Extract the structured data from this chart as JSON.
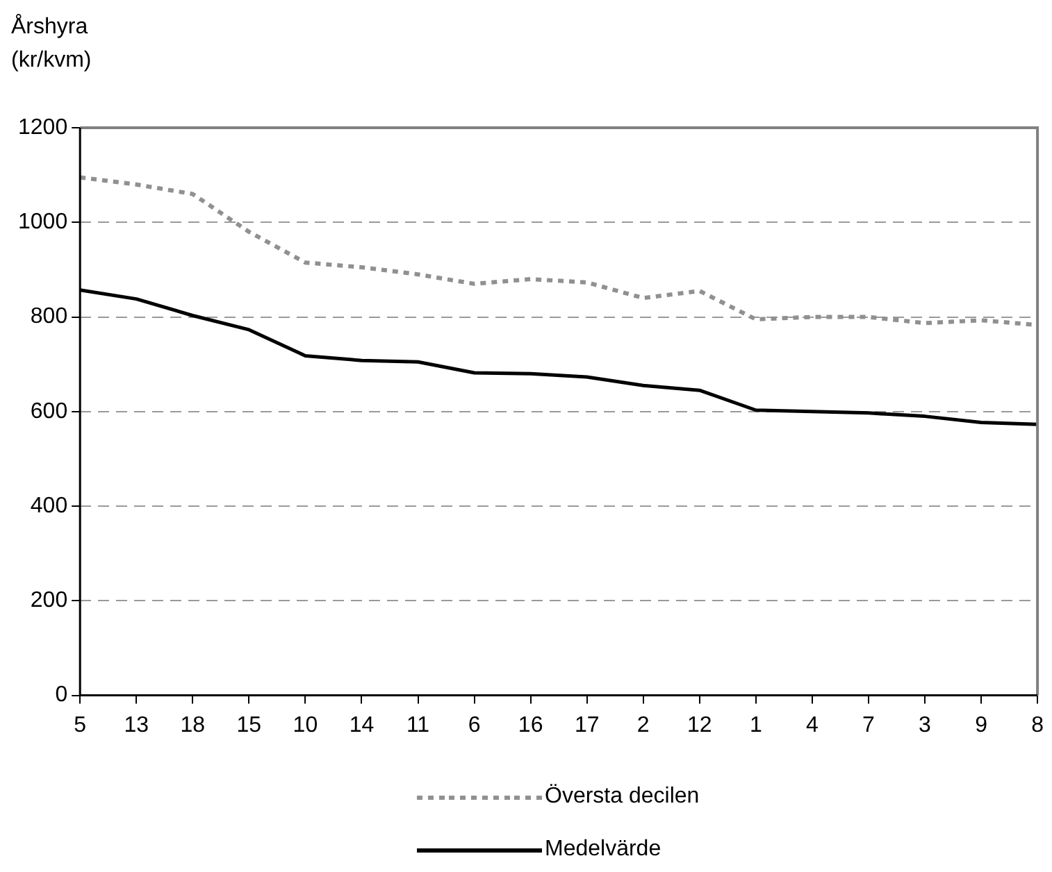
{
  "chart_data": {
    "type": "line",
    "ylabel": "Årshyra\n(kr/kvm)",
    "categories": [
      "5",
      "13",
      "18",
      "15",
      "10",
      "14",
      "11",
      "6",
      "16",
      "17",
      "2",
      "12",
      "1",
      "4",
      "7",
      "3",
      "9",
      "8"
    ],
    "series": [
      {
        "name": "Översta decilen",
        "color": "#909090",
        "line_style": "dotted",
        "values": [
          1095,
          1080,
          1060,
          980,
          915,
          905,
          890,
          870,
          880,
          873,
          840,
          855,
          795,
          800,
          800,
          787,
          793,
          783
        ]
      },
      {
        "name": "Medelvärde",
        "color": "#000000",
        "line_style": "solid",
        "values": [
          857,
          838,
          803,
          773,
          718,
          708,
          705,
          682,
          680,
          673,
          655,
          645,
          603,
          600,
          597,
          590,
          577,
          573
        ]
      }
    ],
    "ylim": [
      0,
      1200
    ],
    "yticks": [
      0,
      200,
      400,
      600,
      800,
      1000,
      1200
    ],
    "grid": "y",
    "legend": "bottom",
    "marker": "none"
  }
}
